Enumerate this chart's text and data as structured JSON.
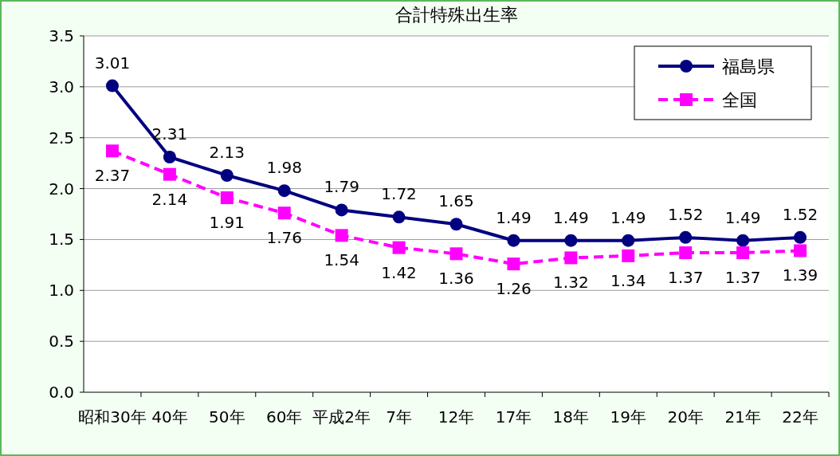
{
  "chart_data": {
    "type": "line",
    "title": "合計特殊出生率",
    "categories": [
      "昭和30年",
      "40年",
      "50年",
      "60年",
      "平成2年",
      "7年",
      "12年",
      "17年",
      "18年",
      "19年",
      "20年",
      "21年",
      "22年"
    ],
    "series": [
      {
        "name": "福島県",
        "color": "#000080",
        "marker": "circle",
        "line_style": "solid",
        "values": [
          3.01,
          2.31,
          2.13,
          1.98,
          1.79,
          1.72,
          1.65,
          1.49,
          1.49,
          1.49,
          1.52,
          1.49,
          1.52
        ]
      },
      {
        "name": "全国",
        "color": "#ff00ff",
        "marker": "square",
        "line_style": "dashed",
        "values": [
          2.37,
          2.14,
          1.91,
          1.76,
          1.54,
          1.42,
          1.36,
          1.26,
          1.32,
          1.34,
          1.37,
          1.37,
          1.39
        ]
      }
    ],
    "ylim": [
      0,
      3.5
    ],
    "yticks": [
      {
        "value": 0,
        "label": "0.0"
      },
      0.5,
      {
        "value": 1,
        "label": "1.0"
      },
      1.5,
      {
        "value": 2,
        "label": "2.0"
      },
      2.5,
      {
        "value": 3,
        "label": "3.0"
      },
      3.5
    ],
    "grid": "y",
    "legend": "top right",
    "data_labels": true
  }
}
